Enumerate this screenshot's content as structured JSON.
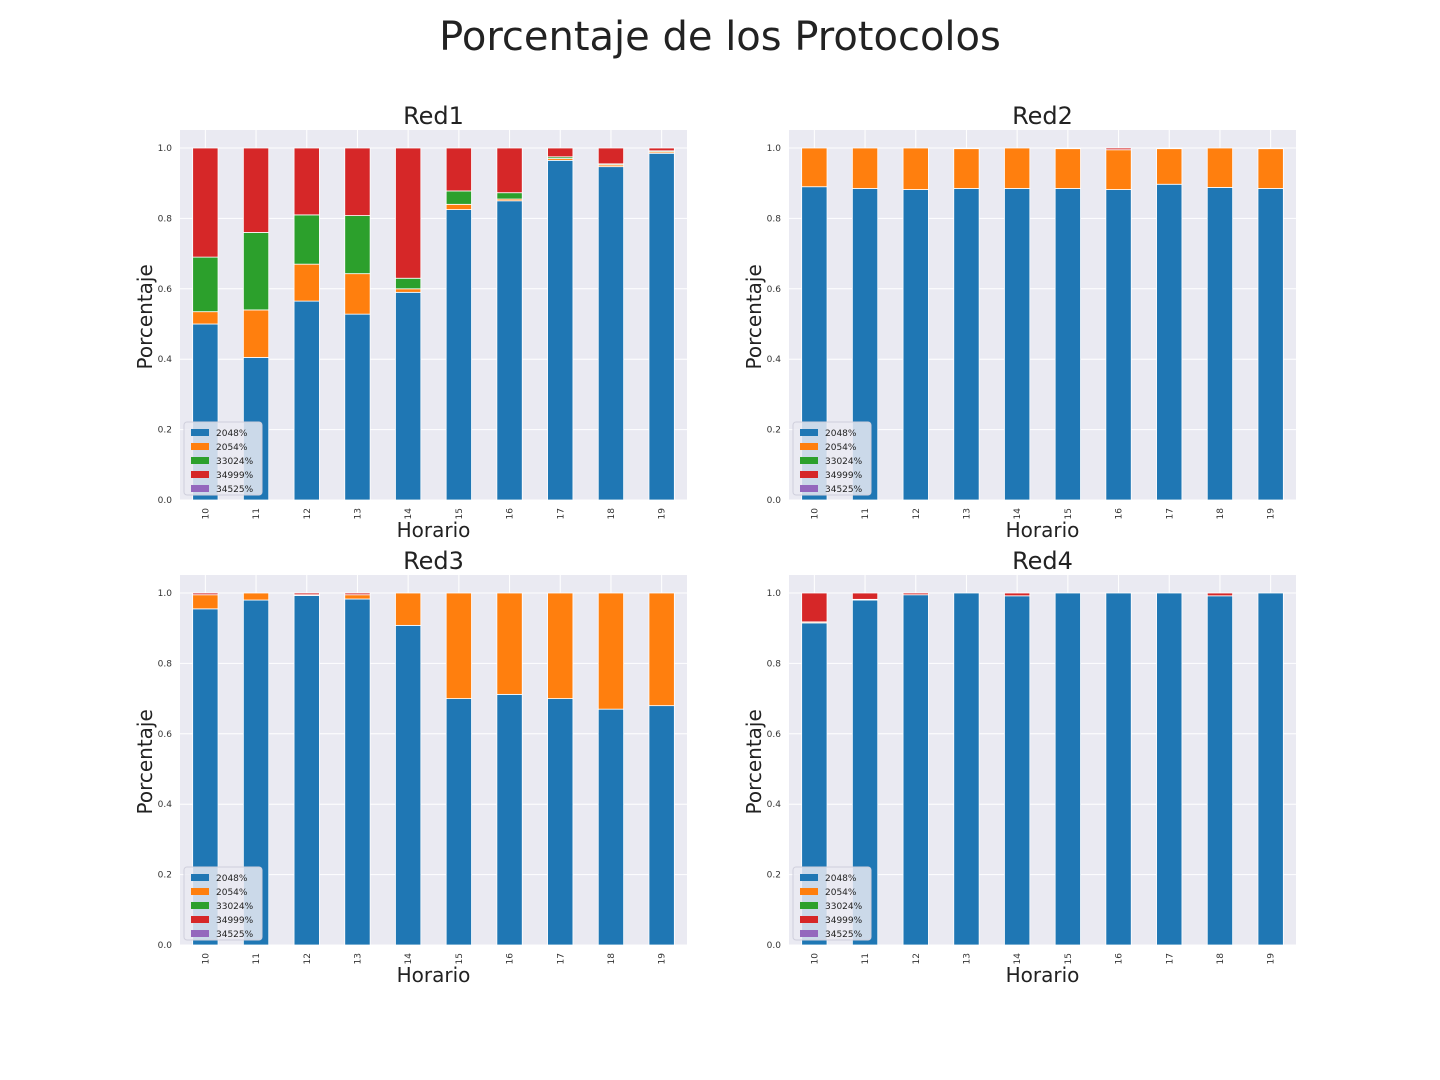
{
  "suptitle": "Porcentaje de los Protocolos",
  "chart_data": [
    {
      "type": "bar",
      "stacked": true,
      "title": "Red1",
      "xlabel": "Horario",
      "ylabel": "Porcentaje",
      "categories": [
        "10",
        "11",
        "12",
        "13",
        "14",
        "15",
        "16",
        "17",
        "18",
        "19"
      ],
      "ylim": [
        0,
        1.05
      ],
      "yticks": [
        "0.0",
        "0.2",
        "0.4",
        "0.6",
        "0.8",
        "1.0"
      ],
      "legend_position": "lower-left",
      "series": [
        {
          "name": "2048%",
          "color": "#1f77b4",
          "values": [
            0.5,
            0.405,
            0.565,
            0.528,
            0.59,
            0.825,
            0.85,
            0.965,
            0.947,
            0.985
          ]
        },
        {
          "name": "2054%",
          "color": "#ff7f0e",
          "values": [
            0.035,
            0.135,
            0.105,
            0.115,
            0.01,
            0.015,
            0.005,
            0.005,
            0.005,
            0.004
          ]
        },
        {
          "name": "33024%",
          "color": "#2ca02c",
          "values": [
            0.155,
            0.22,
            0.14,
            0.165,
            0.03,
            0.038,
            0.018,
            0.005,
            0.003,
            0.003
          ]
        },
        {
          "name": "34999%",
          "color": "#d62728",
          "values": [
            0.31,
            0.24,
            0.19,
            0.192,
            0.37,
            0.122,
            0.127,
            0.025,
            0.045,
            0.008
          ]
        },
        {
          "name": "34525%",
          "color": "#9467bd",
          "values": [
            0,
            0,
            0,
            0,
            0,
            0,
            0,
            0,
            0,
            0
          ]
        }
      ]
    },
    {
      "type": "bar",
      "stacked": true,
      "title": "Red2",
      "xlabel": "Horario",
      "ylabel": "Porcentaje",
      "categories": [
        "10",
        "11",
        "12",
        "13",
        "14",
        "15",
        "16",
        "17",
        "18",
        "19"
      ],
      "ylim": [
        0,
        1.05
      ],
      "yticks": [
        "0.0",
        "0.2",
        "0.4",
        "0.6",
        "0.8",
        "1.0"
      ],
      "legend_position": "lower-left",
      "series": [
        {
          "name": "2048%",
          "color": "#1f77b4",
          "values": [
            0.89,
            0.885,
            0.882,
            0.885,
            0.885,
            0.885,
            0.882,
            0.897,
            0.888,
            0.885
          ]
        },
        {
          "name": "2054%",
          "color": "#ff7f0e",
          "values": [
            0.11,
            0.115,
            0.118,
            0.113,
            0.115,
            0.113,
            0.113,
            0.101,
            0.112,
            0.113
          ]
        },
        {
          "name": "33024%",
          "color": "#2ca02c",
          "values": [
            0,
            0,
            0,
            0,
            0,
            0,
            0,
            0,
            0,
            0
          ]
        },
        {
          "name": "34999%",
          "color": "#d62728",
          "values": [
            0,
            0,
            0,
            0,
            0,
            0,
            0.005,
            0,
            0,
            0
          ]
        },
        {
          "name": "34525%",
          "color": "#9467bd",
          "values": [
            0,
            0,
            0,
            0,
            0,
            0,
            0,
            0,
            0,
            0
          ]
        }
      ]
    },
    {
      "type": "bar",
      "stacked": true,
      "title": "Red3",
      "xlabel": "Horario",
      "ylabel": "Porcentaje",
      "categories": [
        "10",
        "11",
        "12",
        "13",
        "14",
        "15",
        "16",
        "17",
        "18",
        "19"
      ],
      "ylim": [
        0,
        1.05
      ],
      "yticks": [
        "0.0",
        "0.2",
        "0.4",
        "0.6",
        "0.8",
        "1.0"
      ],
      "legend_position": "lower-left",
      "series": [
        {
          "name": "2048%",
          "color": "#1f77b4",
          "values": [
            0.955,
            0.98,
            0.993,
            0.983,
            0.908,
            0.7,
            0.712,
            0.7,
            0.67,
            0.68
          ]
        },
        {
          "name": "2054%",
          "color": "#ff7f0e",
          "values": [
            0.04,
            0.02,
            0.002,
            0.012,
            0.092,
            0.3,
            0.288,
            0.3,
            0.33,
            0.32
          ]
        },
        {
          "name": "33024%",
          "color": "#2ca02c",
          "values": [
            0,
            0,
            0,
            0,
            0,
            0,
            0,
            0,
            0,
            0
          ]
        },
        {
          "name": "34999%",
          "color": "#d62728",
          "values": [
            0.005,
            0,
            0.005,
            0.005,
            0,
            0,
            0,
            0,
            0,
            0
          ]
        },
        {
          "name": "34525%",
          "color": "#9467bd",
          "values": [
            0,
            0,
            0,
            0,
            0,
            0,
            0,
            0,
            0,
            0
          ]
        }
      ]
    },
    {
      "type": "bar",
      "stacked": true,
      "title": "Red4",
      "xlabel": "Horario",
      "ylabel": "Porcentaje",
      "categories": [
        "10",
        "11",
        "12",
        "13",
        "14",
        "15",
        "16",
        "17",
        "18",
        "19"
      ],
      "ylim": [
        0,
        1.05
      ],
      "yticks": [
        "0.0",
        "0.2",
        "0.4",
        "0.6",
        "0.8",
        "1.0"
      ],
      "legend_position": "lower-left",
      "series": [
        {
          "name": "2048%",
          "color": "#1f77b4",
          "values": [
            0.915,
            0.98,
            0.995,
            1.0,
            0.992,
            1.0,
            1.0,
            1.0,
            0.992,
            1.0
          ]
        },
        {
          "name": "2054%",
          "color": "#ff7f0e",
          "values": [
            0.003,
            0.002,
            0,
            0,
            0,
            0,
            0,
            0,
            0,
            0
          ]
        },
        {
          "name": "33024%",
          "color": "#2ca02c",
          "values": [
            0,
            0,
            0,
            0,
            0,
            0,
            0,
            0,
            0,
            0
          ]
        },
        {
          "name": "34999%",
          "color": "#d62728",
          "values": [
            0.082,
            0.018,
            0.005,
            0,
            0.008,
            0,
            0,
            0,
            0.008,
            0
          ]
        },
        {
          "name": "34525%",
          "color": "#9467bd",
          "values": [
            0,
            0,
            0,
            0,
            0,
            0,
            0,
            0,
            0,
            0
          ]
        }
      ]
    }
  ]
}
